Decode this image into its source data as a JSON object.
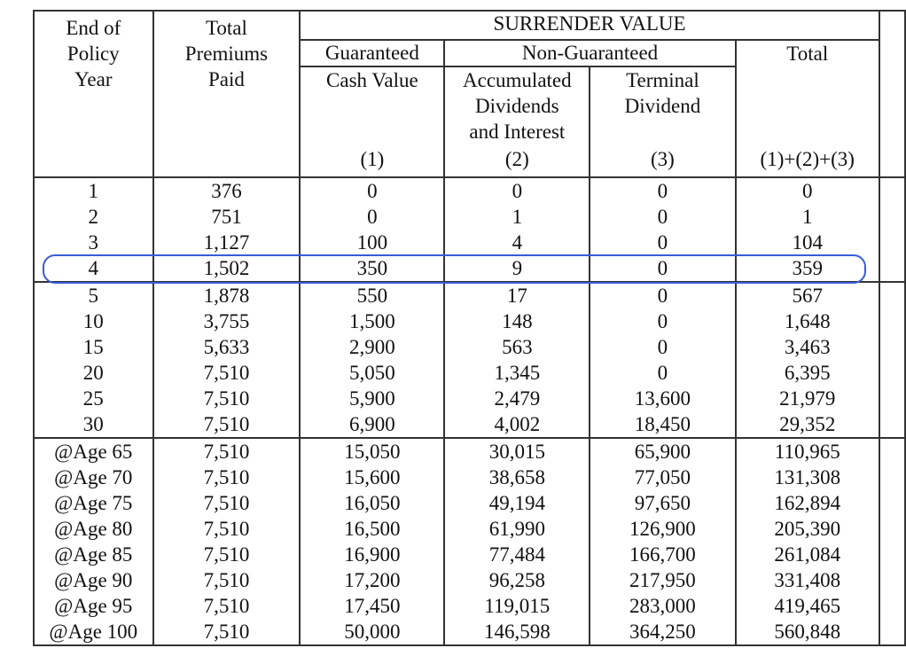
{
  "header": {
    "end_of_policy_year": "End of\nPolicy\nYear",
    "total_premiums_paid": "Total\nPremiums\nPaid",
    "surrender_value": "SURRENDER VALUE",
    "guaranteed": "Guaranteed",
    "non_guaranteed": "Non-Guaranteed",
    "total": "Total",
    "cash_value": "Cash Value",
    "accumulated_dividends": "Accumulated\nDividends\nand Interest",
    "terminal_dividend": "Terminal\nDividend",
    "col1_ref": "(1)",
    "col2_ref": "(2)",
    "col3_ref": "(3)",
    "total_ref": "(1)+(2)+(3)"
  },
  "sections": [
    [
      [
        "1",
        "376",
        "0",
        "0",
        "0",
        "0"
      ],
      [
        "2",
        "751",
        "0",
        "1",
        "0",
        "1"
      ],
      [
        "3",
        "1,127",
        "100",
        "4",
        "0",
        "104"
      ],
      [
        "4",
        "1,502",
        "350",
        "9",
        "0",
        "359"
      ]
    ],
    [
      [
        "5",
        "1,878",
        "550",
        "17",
        "0",
        "567"
      ],
      [
        "10",
        "3,755",
        "1,500",
        "148",
        "0",
        "1,648"
      ],
      [
        "15",
        "5,633",
        "2,900",
        "563",
        "0",
        "3,463"
      ],
      [
        "20",
        "7,510",
        "5,050",
        "1,345",
        "0",
        "6,395"
      ],
      [
        "25",
        "7,510",
        "5,900",
        "2,479",
        "13,600",
        "21,979"
      ],
      [
        "30",
        "7,510",
        "6,900",
        "4,002",
        "18,450",
        "29,352"
      ]
    ],
    [
      [
        "@Age 65",
        "7,510",
        "15,050",
        "30,015",
        "65,900",
        "110,965"
      ],
      [
        "@Age 70",
        "7,510",
        "15,600",
        "38,658",
        "77,050",
        "131,308"
      ],
      [
        "@Age 75",
        "7,510",
        "16,050",
        "49,194",
        "97,650",
        "162,894"
      ],
      [
        "@Age 80",
        "7,510",
        "16,500",
        "61,990",
        "126,900",
        "205,390"
      ],
      [
        "@Age 85",
        "7,510",
        "16,900",
        "77,484",
        "166,700",
        "261,084"
      ],
      [
        "@Age 90",
        "7,510",
        "17,200",
        "96,258",
        "217,950",
        "331,408"
      ],
      [
        "@Age 95",
        "7,510",
        "17,450",
        "119,015",
        "283,000",
        "419,465"
      ],
      [
        "@Age 100",
        "7,510",
        "50,000",
        "146,598",
        "364,250",
        "560,848"
      ]
    ]
  ]
}
